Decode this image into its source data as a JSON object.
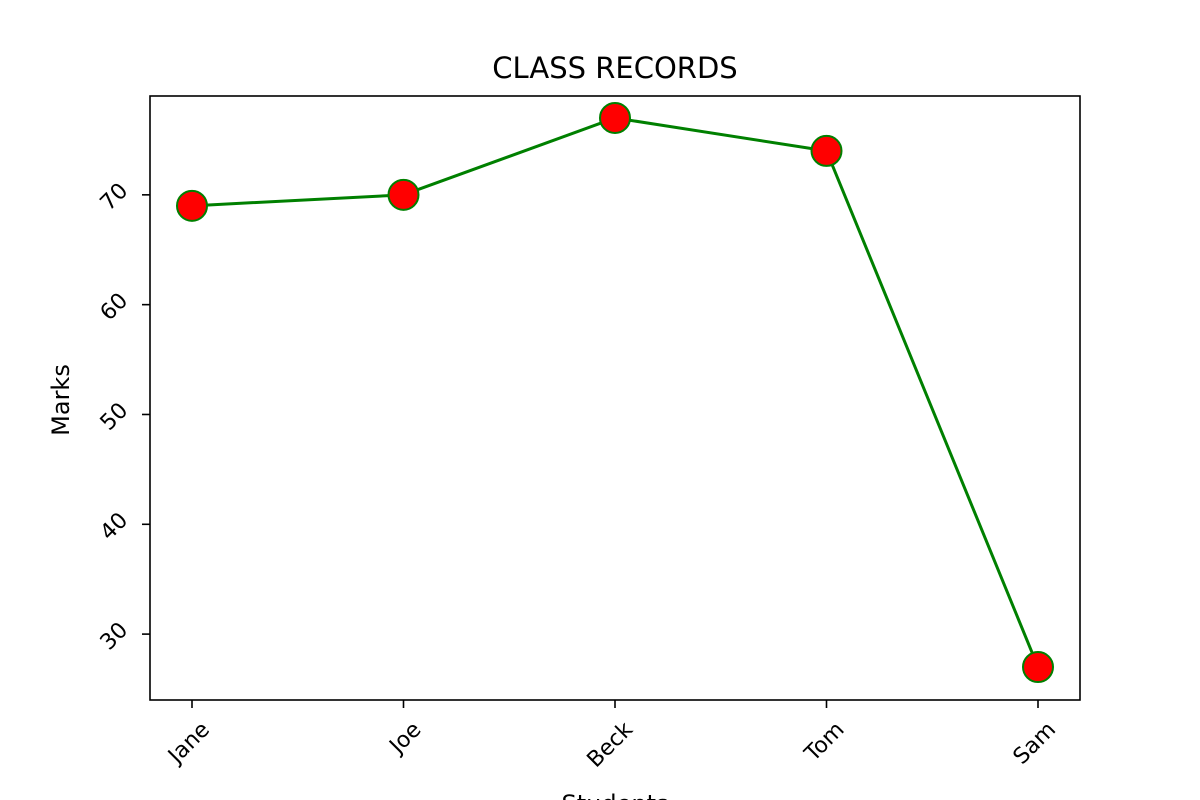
{
  "chart_data": {
    "type": "line",
    "title": "CLASS RECORDS",
    "xlabel": "Students",
    "ylabel": "Marks",
    "categories": [
      "Jane",
      "Joe",
      "Beck",
      "Tom",
      "Sam"
    ],
    "series": [
      {
        "values": [
          69,
          70,
          77,
          74,
          27
        ],
        "line_color": "#008000",
        "marker_face_color": "#ff0000",
        "marker_edge_color": "#008000",
        "marker": "circle"
      }
    ],
    "yticks": [
      30,
      40,
      50,
      60,
      70
    ],
    "ylim": [
      24,
      79
    ],
    "tick_label_rotation_deg": 45,
    "grid": false,
    "legend": "none"
  }
}
